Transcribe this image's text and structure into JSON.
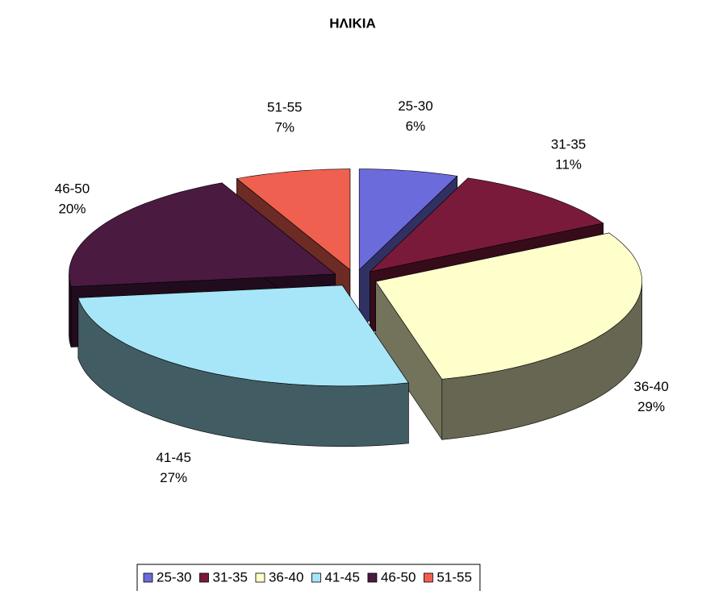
{
  "chart_data": {
    "type": "pie3d",
    "title": "ΗΛΙΚΙΑ",
    "categories": [
      "25-30",
      "31-35",
      "36-40",
      "41-45",
      "46-50",
      "51-55"
    ],
    "values": [
      6,
      11,
      29,
      27,
      20,
      7
    ],
    "value_labels": [
      "6%",
      "11%",
      "29%",
      "27%",
      "20%",
      "7%"
    ],
    "colors": [
      "#6b6bdc",
      "#7a1a3a",
      "#ffffcc",
      "#a6e6f8",
      "#4a1a40",
      "#f06050"
    ],
    "legend": "bottom"
  }
}
